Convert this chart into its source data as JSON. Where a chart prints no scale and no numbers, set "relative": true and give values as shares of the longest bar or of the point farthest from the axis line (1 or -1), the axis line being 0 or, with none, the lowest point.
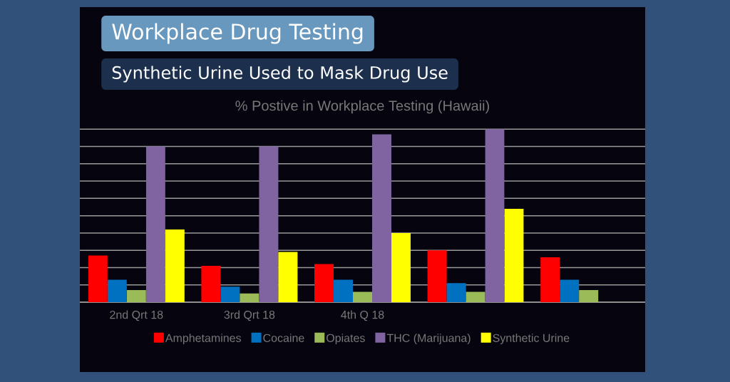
{
  "chart_data": {
    "type": "bar",
    "title": "% Postive in Workplace Testing (Hawaii)",
    "annotations": [
      "Workplace Drug Testing",
      "Synthetic Urine Used to Mask Drug Use"
    ],
    "categories": [
      "2nd Qrt 18",
      "3rd Qrt 18",
      "4th Q 18",
      null,
      null
    ],
    "relative": true,
    "grid": "y",
    "legend": "bottom",
    "series": [
      {
        "name": "Amphetamines",
        "color": "#ff0000",
        "values": [
          0.27,
          0.21,
          0.22,
          0.3,
          0.26
        ]
      },
      {
        "name": "Cocaine",
        "color": "#0070c0",
        "values": [
          0.13,
          0.09,
          0.13,
          0.11,
          0.13
        ]
      },
      {
        "name": "Opiates",
        "color": "#9bbb59",
        "values": [
          0.07,
          0.05,
          0.06,
          0.06,
          0.07
        ]
      },
      {
        "name": "THC (Marijuana)",
        "color": "#8064a2",
        "values": [
          0.9,
          0.9,
          0.97,
          1.0,
          null
        ]
      },
      {
        "name": "Synthetic Urine",
        "color": "#ffff00",
        "values": [
          0.42,
          0.29,
          0.4,
          0.54,
          null
        ]
      }
    ]
  }
}
